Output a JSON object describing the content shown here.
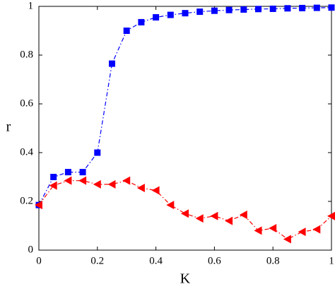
{
  "chart_data": {
    "type": "line",
    "x_label": "K",
    "y_label": "r",
    "x": [
      0,
      0.05,
      0.1,
      0.15,
      0.2,
      0.25,
      0.3,
      0.35,
      0.4,
      0.45,
      0.5,
      0.55,
      0.6,
      0.65,
      0.7,
      0.75,
      0.8,
      0.85,
      0.9,
      0.95,
      1
    ],
    "series": [
      {
        "color": "#0000ff",
        "marker": "square",
        "linestyle": "dashdot",
        "values": [
          0.185,
          0.3,
          0.32,
          0.32,
          0.4,
          0.765,
          0.9,
          0.935,
          0.955,
          0.965,
          0.972,
          0.978,
          0.982,
          0.985,
          0.987,
          0.989,
          0.99,
          0.992,
          0.993,
          0.994,
          0.995
        ]
      },
      {
        "color": "#ff0000",
        "marker": "triangle-left",
        "linestyle": "dashdot",
        "values": [
          0.185,
          0.265,
          0.285,
          0.285,
          0.27,
          0.27,
          0.285,
          0.255,
          0.245,
          0.185,
          0.15,
          0.13,
          0.14,
          0.12,
          0.145,
          0.08,
          0.09,
          0.045,
          0.075,
          0.085,
          0.14
        ]
      }
    ],
    "xlim": [
      0,
      1
    ],
    "ylim": [
      0,
      1
    ],
    "xticks": [
      0,
      0.2,
      0.4,
      0.6,
      0.8,
      1
    ],
    "yticks": [
      0,
      0.2,
      0.4,
      0.6,
      0.8,
      1
    ]
  }
}
